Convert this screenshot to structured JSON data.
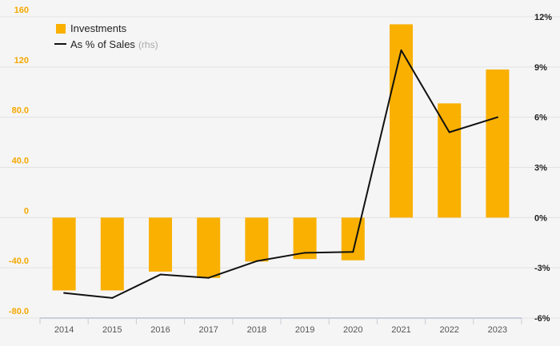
{
  "chart_data": {
    "type": "bar",
    "categories": [
      "2014",
      "2015",
      "2016",
      "2017",
      "2018",
      "2019",
      "2020",
      "2021",
      "2022",
      "2023"
    ],
    "series": [
      {
        "name": "Investments",
        "type": "bar",
        "axis": "left",
        "color": "#f9b000",
        "values": [
          -58,
          -58,
          -43,
          -48,
          -35,
          -33,
          -34,
          154,
          91,
          118
        ]
      },
      {
        "name": "As % of Sales",
        "name_suffix": "(rhs)",
        "type": "line",
        "axis": "right",
        "color": "#111111",
        "values": [
          -4.5,
          -4.8,
          -3.4,
          -3.6,
          -2.6,
          -2.1,
          -2.05,
          10,
          5.1,
          6
        ]
      }
    ],
    "y_left": {
      "ylim": [
        -80,
        160
      ],
      "ticks": [
        160,
        120,
        80,
        40,
        0,
        -40,
        -80
      ],
      "tick_labels": [
        "160",
        "120",
        "80.0",
        "40.0",
        "0",
        "-40.0",
        "-80.0"
      ]
    },
    "y_right": {
      "ylim": [
        -6,
        12
      ],
      "ticks": [
        12,
        9,
        6,
        3,
        0,
        -3,
        -6
      ],
      "tick_labels": [
        "12%",
        "9%",
        "6%",
        "3%",
        "0%",
        "-3%",
        "-6%"
      ]
    },
    "grid": true,
    "legend_position": "top-left"
  }
}
